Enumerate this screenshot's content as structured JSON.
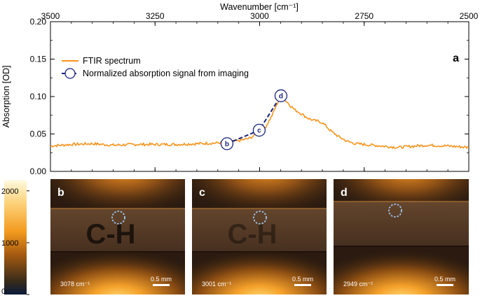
{
  "chart_data": {
    "type": "line",
    "title": "",
    "panel_label": "a",
    "xlabel": "Wavenumber [cm⁻¹]",
    "ylabel": "Absorption [OD]",
    "xlim": [
      3500,
      2500
    ],
    "ylim": [
      0,
      0.2
    ],
    "x_ticks": [
      "3500",
      "3250",
      "3000",
      "2750",
      "2500"
    ],
    "y_ticks": [
      "0.00",
      "0.05",
      "0.10",
      "0.15",
      "0.20"
    ],
    "legend": [
      "FTIR spectrum",
      "Normalized absorption signal from imaging"
    ],
    "series": [
      {
        "name": "FTIR spectrum",
        "color": "#f7941d",
        "x": [
          3500,
          3450,
          3400,
          3350,
          3300,
          3250,
          3200,
          3150,
          3100,
          3075,
          3050,
          3025,
          3000,
          2985,
          2970,
          2960,
          2950,
          2945,
          2935,
          2925,
          2915,
          2900,
          2890,
          2880,
          2870,
          2860,
          2850,
          2840,
          2830,
          2810,
          2790,
          2770,
          2750,
          2730,
          2710,
          2690,
          2670,
          2650,
          2600,
          2550,
          2500
        ],
        "y": [
          0.034,
          0.036,
          0.037,
          0.035,
          0.036,
          0.036,
          0.036,
          0.037,
          0.038,
          0.039,
          0.041,
          0.044,
          0.052,
          0.06,
          0.075,
          0.088,
          0.1,
          0.098,
          0.093,
          0.087,
          0.082,
          0.077,
          0.073,
          0.07,
          0.068,
          0.067,
          0.065,
          0.06,
          0.054,
          0.046,
          0.04,
          0.037,
          0.036,
          0.035,
          0.034,
          0.033,
          0.032,
          0.033,
          0.035,
          0.034,
          0.032
        ]
      },
      {
        "name": "Normalized absorption signal from imaging",
        "color": "#1a237e",
        "points": [
          {
            "label": "b",
            "x": 3078,
            "y": 0.037
          },
          {
            "label": "c",
            "x": 3001,
            "y": 0.055
          },
          {
            "label": "d",
            "x": 2949,
            "y": 0.101
          }
        ]
      }
    ]
  },
  "images": [
    {
      "label": "b",
      "wavenumber": "3078 cm⁻¹",
      "scale": "0.5 mm",
      "text": "C-H",
      "text_opacity": 0.95
    },
    {
      "label": "c",
      "wavenumber": "3001 cm⁻¹",
      "scale": "0.5 mm",
      "text": "C-H",
      "text_opacity": 0.55
    },
    {
      "label": "d",
      "wavenumber": "2949 cm⁻¹",
      "scale": "0.5 mm",
      "text": "",
      "text_opacity": 0
    }
  ],
  "colorbar": {
    "ticks": [
      "2000",
      "1000",
      "0"
    ],
    "min": 0,
    "max": 2200
  }
}
